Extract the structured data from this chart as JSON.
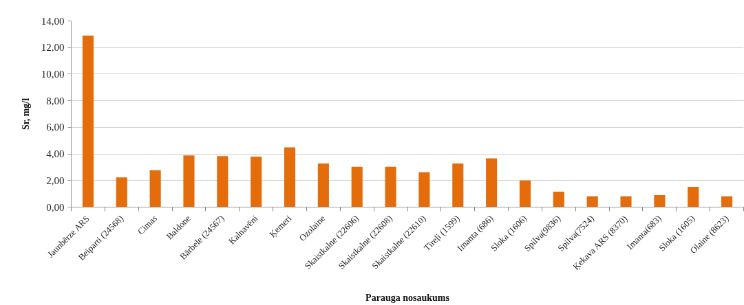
{
  "chart_data": {
    "type": "bar",
    "xlabel": "Parauga nosaukums",
    "ylabel": "Sr, mg/l",
    "categories": [
      "Jaunbērze ARS",
      "Beiparti (24568)",
      "Cimas",
      "Baldone",
      "Bārbele (24567)",
      "Kalnavēni",
      "Ķemeri",
      "Ozolaine",
      "Skaistkalne (22606)",
      "Skaistkalne (22608)",
      "Skaistkalne (22610)",
      "Tīreļi (1599)",
      "Imanta (686)",
      "Sloka (1606)",
      "Spilva(9836)",
      "Spilva(7524)",
      "Ķekava ARS (8370)",
      "Imanta(683)",
      "Sloka (1605)",
      "Olaine (8623)"
    ],
    "values": [
      12.9,
      2.23,
      2.78,
      3.89,
      3.83,
      3.8,
      4.49,
      3.28,
      3.03,
      3.03,
      2.62,
      3.28,
      3.67,
      2.0,
      1.16,
      0.82,
      0.82,
      0.91,
      1.53,
      0.82
    ],
    "color": "#e46c0a",
    "ylim": [
      0,
      14
    ],
    "yticks": [
      {
        "value": 0,
        "label": "0,00"
      },
      {
        "value": 2,
        "label": "2,00"
      },
      {
        "value": 4,
        "label": "4,00"
      },
      {
        "value": 6,
        "label": "6,00"
      },
      {
        "value": 8,
        "label": "8,00"
      },
      {
        "value": 10,
        "label": "10,00"
      },
      {
        "value": 12,
        "label": "12,00"
      },
      {
        "value": 14,
        "label": "14,00"
      }
    ],
    "grid": "y"
  }
}
